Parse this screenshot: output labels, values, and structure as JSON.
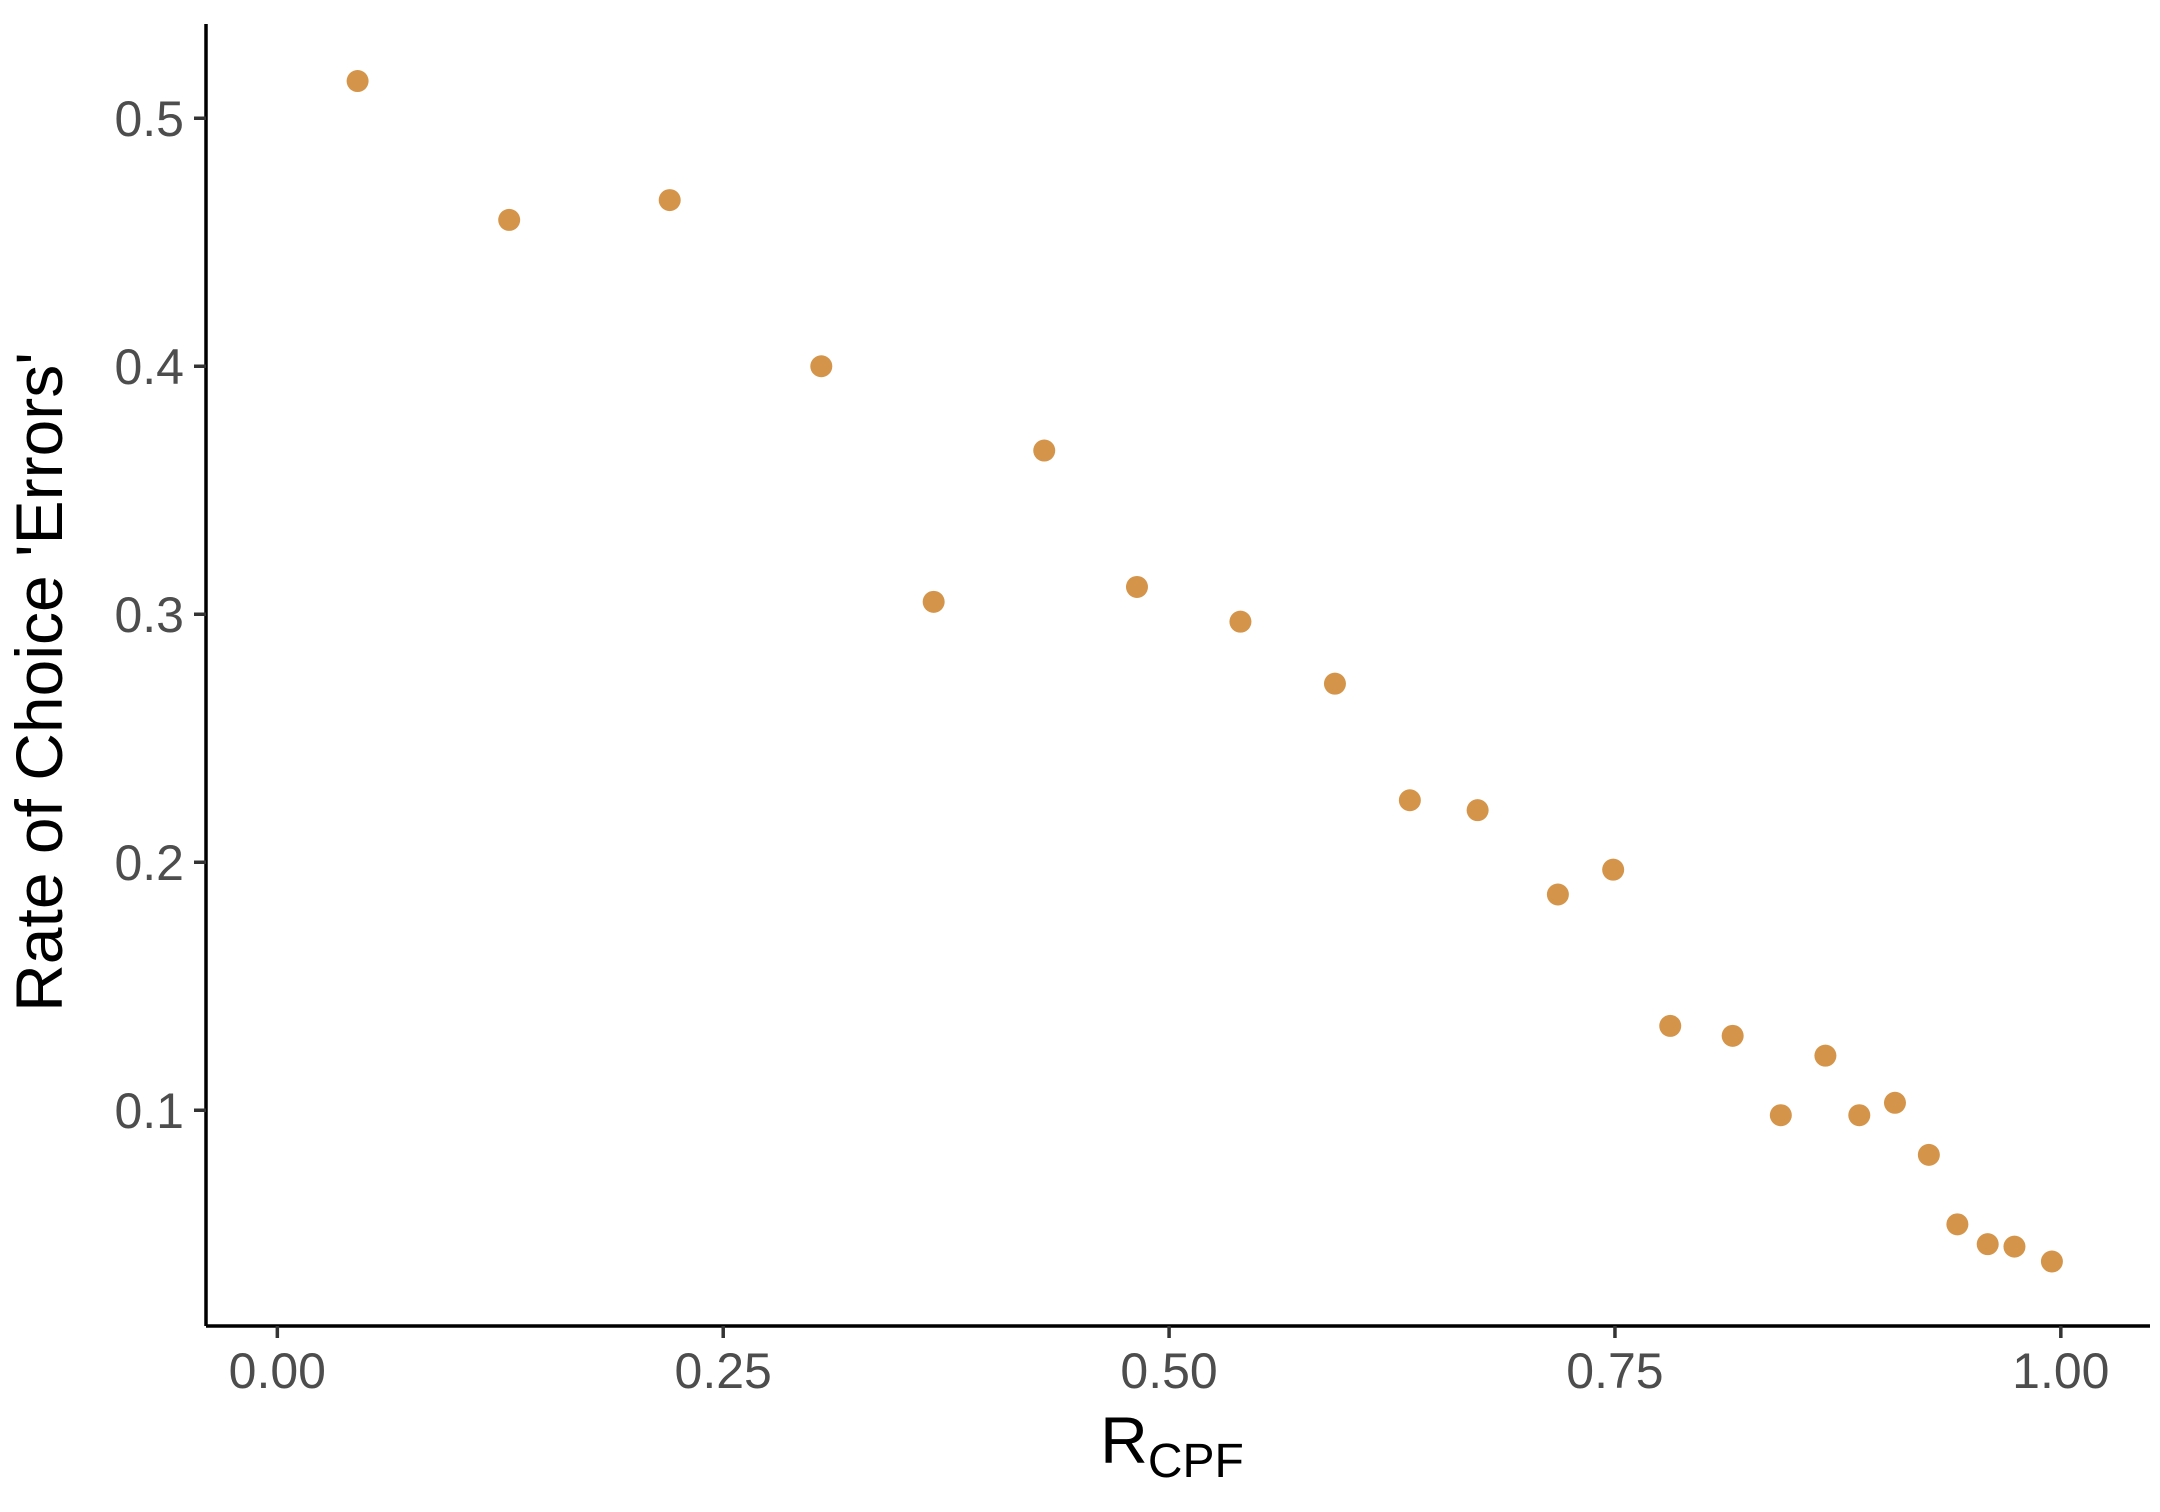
{
  "chart_data": {
    "type": "scatter",
    "title": "",
    "xlabel": {
      "main": "R",
      "subscript": "CPF"
    },
    "ylabel": "Rate of Choice 'Errors'",
    "xlim": [
      -0.04,
      1.05
    ],
    "ylim": [
      0.013,
      0.538
    ],
    "x_ticks": [
      0.0,
      0.25,
      0.5,
      0.75,
      1.0
    ],
    "x_tick_labels": [
      "0.00",
      "0.25",
      "0.50",
      "0.75",
      "1.00"
    ],
    "y_ticks": [
      0.1,
      0.2,
      0.3,
      0.4,
      0.5
    ],
    "y_tick_labels": [
      "0.1",
      "0.2",
      "0.3",
      "0.4",
      "0.5"
    ],
    "grid": false,
    "legend": "none",
    "point_color": "#D4954A",
    "points": [
      {
        "x": 0.045,
        "y": 0.515
      },
      {
        "x": 0.13,
        "y": 0.459
      },
      {
        "x": 0.22,
        "y": 0.467
      },
      {
        "x": 0.305,
        "y": 0.4
      },
      {
        "x": 0.368,
        "y": 0.305
      },
      {
        "x": 0.43,
        "y": 0.366
      },
      {
        "x": 0.482,
        "y": 0.311
      },
      {
        "x": 0.54,
        "y": 0.297
      },
      {
        "x": 0.593,
        "y": 0.272
      },
      {
        "x": 0.635,
        "y": 0.225
      },
      {
        "x": 0.673,
        "y": 0.221
      },
      {
        "x": 0.718,
        "y": 0.187
      },
      {
        "x": 0.749,
        "y": 0.197
      },
      {
        "x": 0.781,
        "y": 0.134
      },
      {
        "x": 0.816,
        "y": 0.13
      },
      {
        "x": 0.843,
        "y": 0.098
      },
      {
        "x": 0.868,
        "y": 0.122
      },
      {
        "x": 0.887,
        "y": 0.098
      },
      {
        "x": 0.907,
        "y": 0.103
      },
      {
        "x": 0.926,
        "y": 0.082
      },
      {
        "x": 0.942,
        "y": 0.054
      },
      {
        "x": 0.959,
        "y": 0.046
      },
      {
        "x": 0.974,
        "y": 0.045
      },
      {
        "x": 0.995,
        "y": 0.039
      }
    ]
  }
}
